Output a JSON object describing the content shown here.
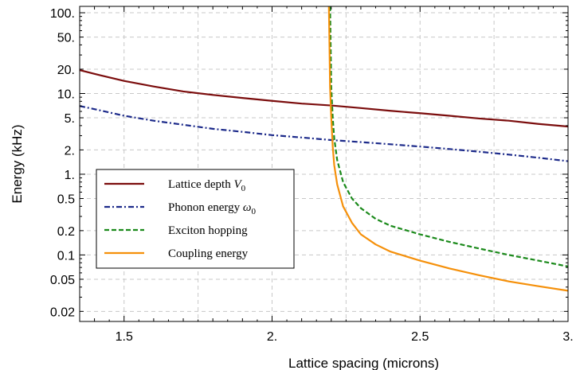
{
  "chart_data": {
    "type": "line",
    "xlabel": "Lattice spacing (microns)",
    "ylabel": "Energy (kHz)",
    "x_scale": "linear",
    "y_scale": "log",
    "xlim": [
      1.35,
      3.0
    ],
    "ylim": [
      0.015,
      120
    ],
    "grid": true,
    "legend_position": "lower-left",
    "x_ticks": [
      {
        "value": 1.5,
        "label": "1.5"
      },
      {
        "value": 2.0,
        "label": "2."
      },
      {
        "value": 2.5,
        "label": "2.5"
      },
      {
        "value": 3.0,
        "label": "3."
      }
    ],
    "y_ticks": [
      {
        "value": 0.02,
        "label": "0.02"
      },
      {
        "value": 0.05,
        "label": "0.05"
      },
      {
        "value": 0.1,
        "label": "0.1"
      },
      {
        "value": 0.2,
        "label": "0.2"
      },
      {
        "value": 0.5,
        "label": "0.5"
      },
      {
        "value": 1,
        "label": "1."
      },
      {
        "value": 2,
        "label": "2."
      },
      {
        "value": 5,
        "label": "5."
      },
      {
        "value": 10,
        "label": "10."
      },
      {
        "value": 20,
        "label": "20."
      },
      {
        "value": 50,
        "label": "50."
      },
      {
        "value": 100,
        "label": "100."
      }
    ],
    "series": [
      {
        "name": "Lattice depth V0",
        "label_main": "Lattice depth ",
        "label_var": "V",
        "label_sub": "0",
        "color": "#7b0d0d",
        "dash": "solid",
        "points": [
          [
            1.35,
            19.5
          ],
          [
            1.4,
            17.5
          ],
          [
            1.5,
            14.3
          ],
          [
            1.6,
            12.2
          ],
          [
            1.7,
            10.6
          ],
          [
            1.8,
            9.6
          ],
          [
            1.9,
            8.8
          ],
          [
            2.0,
            8.1
          ],
          [
            2.1,
            7.5
          ],
          [
            2.2,
            7.1
          ],
          [
            2.3,
            6.6
          ],
          [
            2.4,
            6.1
          ],
          [
            2.5,
            5.7
          ],
          [
            2.6,
            5.3
          ],
          [
            2.7,
            4.9
          ],
          [
            2.8,
            4.6
          ],
          [
            2.9,
            4.2
          ],
          [
            3.0,
            3.9
          ]
        ]
      },
      {
        "name": "Phonon energy ω0",
        "label_main": "Phonon energy ",
        "label_var": "ω",
        "label_sub": "0",
        "color": "#1c2a8a",
        "dash": "7 3 2 3",
        "points": [
          [
            1.35,
            7.0
          ],
          [
            1.4,
            6.4
          ],
          [
            1.5,
            5.3
          ],
          [
            1.6,
            4.6
          ],
          [
            1.7,
            4.1
          ],
          [
            1.8,
            3.65
          ],
          [
            1.9,
            3.35
          ],
          [
            2.0,
            3.05
          ],
          [
            2.1,
            2.85
          ],
          [
            2.2,
            2.65
          ],
          [
            2.3,
            2.5
          ],
          [
            2.4,
            2.35
          ],
          [
            2.5,
            2.2
          ],
          [
            2.6,
            2.05
          ],
          [
            2.7,
            1.9
          ],
          [
            2.8,
            1.75
          ],
          [
            2.9,
            1.6
          ],
          [
            3.0,
            1.45
          ]
        ]
      },
      {
        "name": "Exciton hopping",
        "label_main": "Exciton hopping",
        "label_var": "",
        "label_sub": "",
        "color": "#1b8a1b",
        "dash": "6 3",
        "points": [
          [
            2.196,
            120
          ],
          [
            2.198,
            40
          ],
          [
            2.2,
            12
          ],
          [
            2.205,
            5
          ],
          [
            2.21,
            2.8
          ],
          [
            2.22,
            1.5
          ],
          [
            2.24,
            0.8
          ],
          [
            2.27,
            0.5
          ],
          [
            2.3,
            0.38
          ],
          [
            2.35,
            0.28
          ],
          [
            2.4,
            0.23
          ],
          [
            2.5,
            0.18
          ],
          [
            2.6,
            0.145
          ],
          [
            2.7,
            0.12
          ],
          [
            2.8,
            0.1
          ],
          [
            2.9,
            0.085
          ],
          [
            3.0,
            0.072
          ]
        ]
      },
      {
        "name": "Coupling energy",
        "label_main": "Coupling energy",
        "label_var": "",
        "label_sub": "",
        "color": "#f5900a",
        "dash": "solid",
        "points": [
          [
            2.192,
            120
          ],
          [
            2.194,
            40
          ],
          [
            2.196,
            12
          ],
          [
            2.2,
            5
          ],
          [
            2.205,
            2.2
          ],
          [
            2.21,
            1.3
          ],
          [
            2.22,
            0.75
          ],
          [
            2.24,
            0.4
          ],
          [
            2.27,
            0.25
          ],
          [
            2.3,
            0.18
          ],
          [
            2.35,
            0.135
          ],
          [
            2.4,
            0.11
          ],
          [
            2.5,
            0.085
          ],
          [
            2.6,
            0.068
          ],
          [
            2.7,
            0.056
          ],
          [
            2.8,
            0.047
          ],
          [
            2.9,
            0.041
          ],
          [
            3.0,
            0.036
          ]
        ]
      }
    ]
  }
}
